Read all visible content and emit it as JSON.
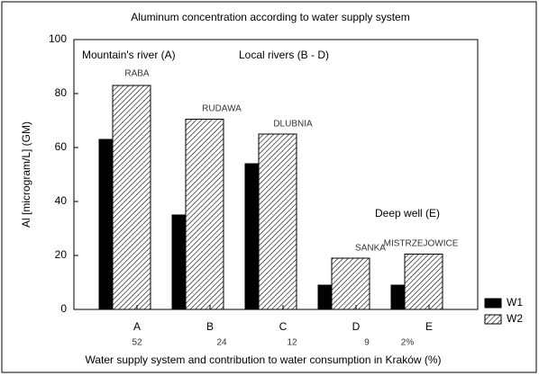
{
  "chart_data": {
    "type": "bar",
    "title": "Aluminum concentration according to water supply system",
    "y_label": "Al [microgram/L] (GM)",
    "x_label": "Water supply system and contribution to water consumption in Kraków (%)",
    "categories": [
      "A",
      "B",
      "C",
      "D",
      "E"
    ],
    "contributions": [
      "52",
      "24",
      "12",
      "9",
      "2%"
    ],
    "series": [
      {
        "name": "W1",
        "color": "#000000",
        "pattern": "solid",
        "values": [
          63,
          35,
          54,
          9,
          9
        ]
      },
      {
        "name": "W2",
        "color": "#000000",
        "pattern": "hatch",
        "values": [
          83,
          70.5,
          65,
          19,
          20.5
        ]
      }
    ],
    "bar_labels": [
      "RABA",
      "RUDAWA",
      "DLUBNIA",
      "SANKA",
      "MISTRZEJOWICE"
    ],
    "group_labels": [
      "Mountain's river (A)",
      "Local rivers (B - D)",
      "Deep well (E)"
    ],
    "ylim": [
      0,
      100
    ],
    "yticks": [
      0,
      20,
      40,
      60,
      80,
      100
    ],
    "grid": false,
    "legend": "bottom-right"
  }
}
